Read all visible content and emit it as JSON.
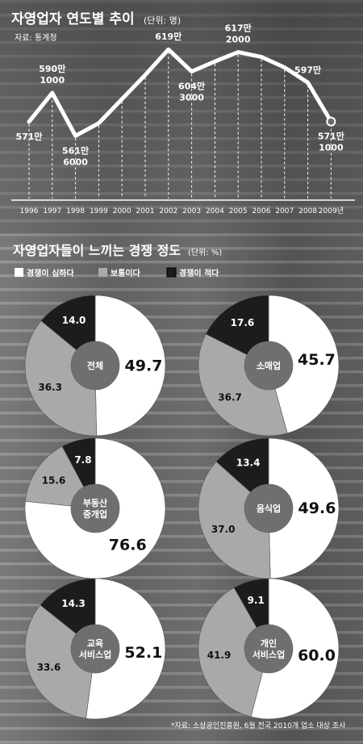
{
  "chart_data": [
    {
      "type": "line",
      "title": "자영업자 연도별 추이",
      "unit": "(단위: 명)",
      "source": "자료: 통계청",
      "x": [
        "1996",
        "1997",
        "1998",
        "1999",
        "2000",
        "2001",
        "2002",
        "2003",
        "2004",
        "2005",
        "2006",
        "2007",
        "2008",
        "2009년"
      ],
      "y": [
        5710000,
        5901000,
        5616000,
        5700000,
        5860000,
        6020000,
        6190000,
        6043000,
        6110000,
        6172000,
        6140000,
        6070000,
        5970000,
        5711000
      ],
      "annotations": [
        {
          "index": 0,
          "lines": [
            "571만"
          ]
        },
        {
          "index": 1,
          "lines": [
            "590만",
            "1000"
          ]
        },
        {
          "index": 2,
          "lines": [
            "561만",
            "6000"
          ]
        },
        {
          "index": 6,
          "lines": [
            "619만"
          ]
        },
        {
          "index": 7,
          "lines": [
            "604만",
            "3000"
          ]
        },
        {
          "index": 9,
          "lines": [
            "617만",
            "2000"
          ]
        },
        {
          "index": 12,
          "lines": [
            "597만"
          ]
        },
        {
          "index": 13,
          "lines": [
            "571만",
            "1000"
          ]
        }
      ]
    },
    {
      "type": "pie",
      "title": "자영업자들이 느끼는 경쟁 정도",
      "unit": "(단위: %)",
      "legend": [
        {
          "label": "경쟁이 심하다",
          "color": "#ffffff"
        },
        {
          "label": "보통이다",
          "color": "#a9a9a9"
        },
        {
          "label": "경쟁이 적다",
          "color": "#1c1c1c"
        }
      ],
      "charts": [
        {
          "name": [
            "전체"
          ],
          "values": [
            49.7,
            36.3,
            14.0
          ],
          "labels": [
            "49.7",
            "36.3",
            "14.0"
          ]
        },
        {
          "name": [
            "소매업"
          ],
          "values": [
            45.7,
            36.7,
            17.6
          ],
          "labels": [
            "45.7",
            "36.7",
            "17.6"
          ]
        },
        {
          "name": [
            "부동산",
            "중개업"
          ],
          "values": [
            76.6,
            15.6,
            7.8
          ],
          "labels": [
            "76.6",
            "15.6",
            "7.8"
          ]
        },
        {
          "name": [
            "음식업"
          ],
          "values": [
            49.6,
            37.0,
            13.4
          ],
          "labels": [
            "49.6",
            "37.0",
            "13.4"
          ]
        },
        {
          "name": [
            "교육",
            "서비스업"
          ],
          "values": [
            52.1,
            33.6,
            14.3
          ],
          "labels": [
            "52.1",
            "33.6",
            "14.3"
          ]
        },
        {
          "name": [
            "개인",
            "서비스업"
          ],
          "values": [
            60.0,
            41.9,
            9.1
          ],
          "labels": [
            "60.0",
            "41.9",
            "9.1"
          ]
        }
      ],
      "footnote": "*자료: 소상공인진흥원, 6월 전국 2010개 업소 대상 조사"
    }
  ]
}
